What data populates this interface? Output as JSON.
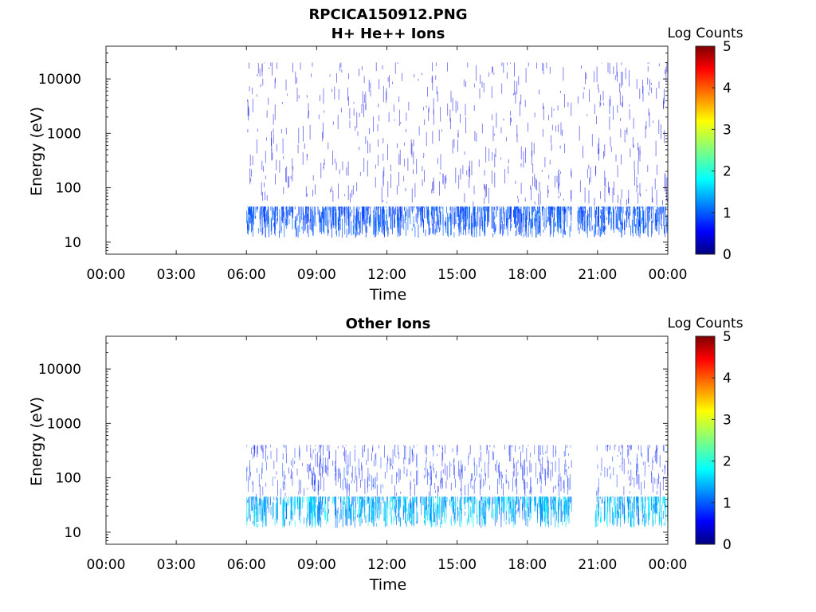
{
  "figure": {
    "title": "RPCICA150912.PNG"
  },
  "chart_data": [
    {
      "type": "heatmap",
      "title": "H+ He++ Ions",
      "xlabel": "Time",
      "ylabel": "Energy (eV)",
      "x_ticks": [
        "00:00",
        "03:00",
        "06:00",
        "09:00",
        "12:00",
        "15:00",
        "18:00",
        "21:00",
        "00:00"
      ],
      "y_ticks": [
        "10",
        "100",
        "1000",
        "10000"
      ],
      "xlim_hours": [
        0,
        24
      ],
      "ylim_ev": [
        6,
        40000
      ],
      "yscale": "log",
      "colorbar": {
        "label": "Log Counts",
        "ticks": [
          "0",
          "1",
          "2",
          "3",
          "4",
          "5"
        ],
        "range": [
          0,
          5
        ],
        "colormap": "jet"
      },
      "data_coverage_hours": [
        [
          6.0,
          19.9
        ],
        [
          20.1,
          24.0
        ]
      ],
      "features": [
        {
          "energy_ev": [
            12,
            45
          ],
          "log_counts": [
            0.8,
            1.2
          ]
        },
        {
          "energy_ev": [
            45,
            20000
          ],
          "log_counts": [
            0.3,
            0.7
          ]
        }
      ]
    },
    {
      "type": "heatmap",
      "title": "Other Ions",
      "xlabel": "Time",
      "ylabel": "Energy (eV)",
      "x_ticks": [
        "00:00",
        "03:00",
        "06:00",
        "09:00",
        "12:00",
        "15:00",
        "18:00",
        "21:00",
        "00:00"
      ],
      "y_ticks": [
        "10",
        "100",
        "1000",
        "10000"
      ],
      "xlim_hours": [
        0,
        24
      ],
      "ylim_ev": [
        6,
        40000
      ],
      "yscale": "log",
      "colorbar": {
        "label": "Log Counts",
        "ticks": [
          "0",
          "1",
          "2",
          "3",
          "4",
          "5"
        ],
        "range": [
          0,
          5
        ],
        "colormap": "jet"
      },
      "data_coverage_hours": [
        [
          6.0,
          19.9
        ],
        [
          20.9,
          24.0
        ]
      ],
      "features": [
        {
          "energy_ev": [
            12,
            45
          ],
          "log_counts": [
            1.0,
            2.0
          ]
        },
        {
          "energy_ev": [
            45,
            400
          ],
          "log_counts": [
            0.5,
            1.0
          ]
        }
      ]
    }
  ]
}
